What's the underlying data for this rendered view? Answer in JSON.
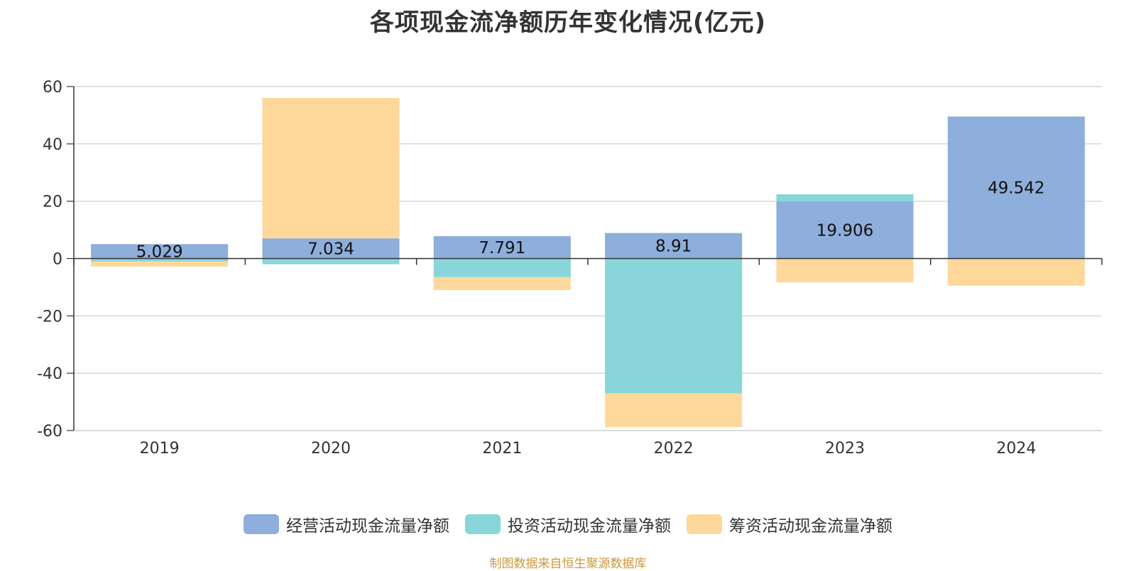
{
  "chart_data": {
    "type": "bar",
    "stacked": true,
    "title": "各项现金流净额历年变化情况(亿元)",
    "categories": [
      "2019",
      "2020",
      "2021",
      "2022",
      "2023",
      "2024"
    ],
    "series": [
      {
        "name": "经营活动现金流量净额",
        "color": "#8eaedb",
        "values": [
          5.029,
          7.034,
          7.791,
          8.91,
          19.906,
          49.542
        ],
        "labels": [
          "5.029",
          "7.034",
          "7.791",
          "8.91",
          "19.906",
          "49.542"
        ]
      },
      {
        "name": "投资活动现金流量净额",
        "color": "#88d6da",
        "values": [
          -1.0,
          -2.0,
          -6.5,
          -47.0,
          2.5,
          0.0
        ]
      },
      {
        "name": "筹资活动现金流量净额",
        "color": "#fed89a",
        "values": [
          -1.8,
          49.0,
          -4.5,
          -11.8,
          -8.3,
          -9.5
        ]
      }
    ],
    "yticks": [
      60,
      40,
      20,
      0,
      -20,
      -40,
      -60
    ],
    "ylim": [
      -60,
      60
    ],
    "xlabel": "",
    "ylabel": "",
    "legend": "bottom-center"
  },
  "source_note": "制图数据来自恒生聚源数据库"
}
